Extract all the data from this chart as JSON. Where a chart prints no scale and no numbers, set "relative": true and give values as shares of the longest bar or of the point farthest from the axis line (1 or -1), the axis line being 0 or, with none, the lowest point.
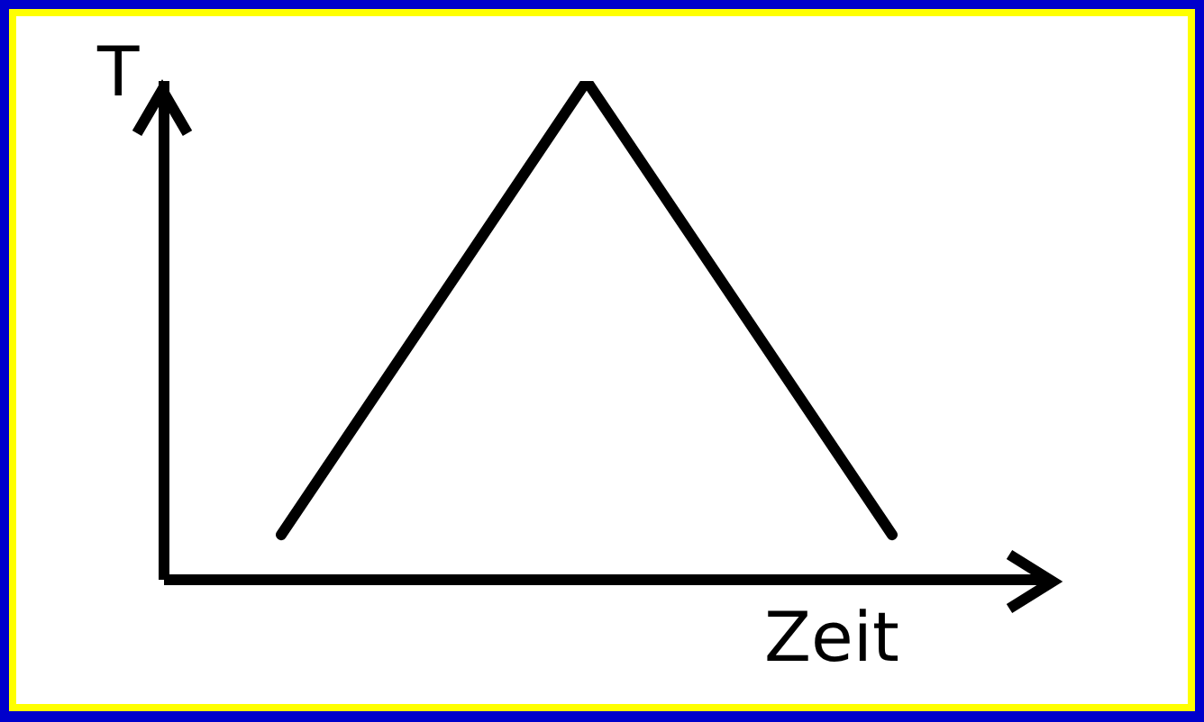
{
  "chart_data": {
    "type": "line",
    "relative": true,
    "xlabel": "Zeit",
    "ylabel": "T",
    "categories": [
      null,
      null,
      null
    ],
    "values": [
      0.09,
      1,
      0.09
    ],
    "color": "#000000",
    "marker": "none",
    "line_style": "solid",
    "tick_labels": false
  }
}
